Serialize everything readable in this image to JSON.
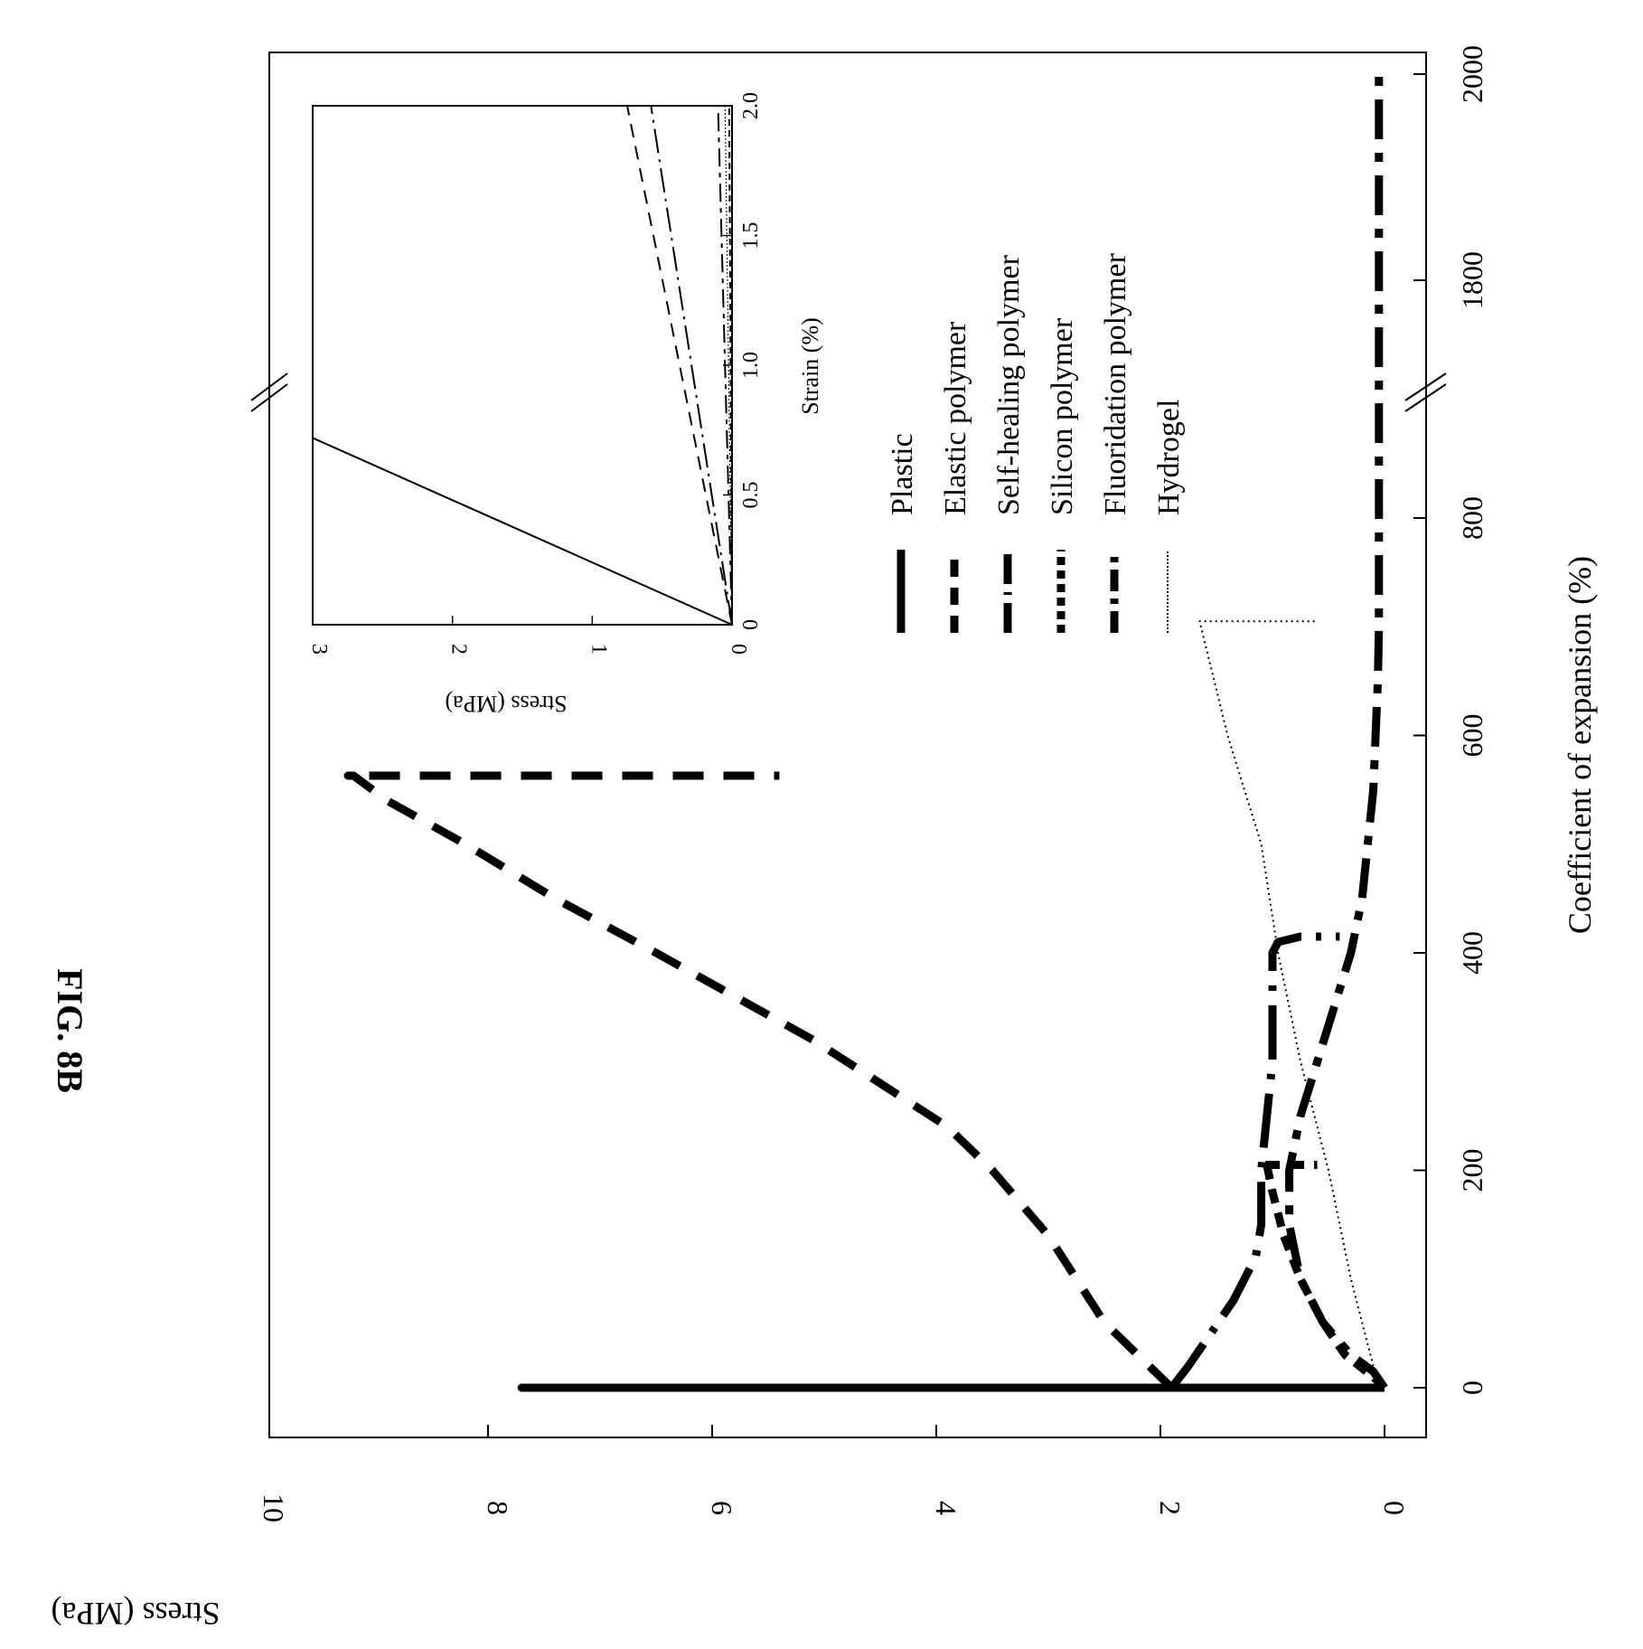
{
  "figure": {
    "label": "FIG. 8B"
  },
  "chart_data": [
    {
      "type": "line",
      "role": "main",
      "xlabel": "Coefficient of expansion (%)",
      "ylabel": "Stress (MPa)",
      "xlim": [
        -50,
        2050
      ],
      "ylim": [
        -0.3,
        10
      ],
      "axis_break": "between 850 and 1750",
      "xticks": [
        0,
        200,
        400,
        600,
        800,
        1800,
        2000
      ],
      "yticks": [
        0,
        2,
        4,
        6,
        8,
        10
      ],
      "grid": false,
      "series": [
        {
          "name": "Plastic",
          "x": [
            0,
            0,
            0
          ],
          "y": [
            0,
            7.7,
            0.9
          ]
        },
        {
          "name": "Elastic polymer",
          "x": [
            0,
            20,
            60,
            140,
            200,
            240,
            280,
            320,
            360,
            400,
            450,
            500,
            540,
            563,
            563,
            563
          ],
          "y": [
            1.9,
            2.1,
            2.5,
            3.0,
            3.5,
            3.9,
            4.5,
            5.1,
            5.8,
            6.5,
            7.4,
            8.2,
            8.9,
            9.2,
            9.25,
            5.4
          ]
        },
        {
          "name": "Self-healing polymer",
          "x": [
            0,
            20,
            50,
            80,
            120,
            150,
            200,
            250,
            300,
            350,
            400,
            410,
            415,
            415
          ],
          "y": [
            1.9,
            1.75,
            1.55,
            1.35,
            1.15,
            1.1,
            1.1,
            1.05,
            1.0,
            1.0,
            1.0,
            0.95,
            0.75,
            0.4
          ]
        },
        {
          "name": "Silicon polymer",
          "x": [
            0,
            10,
            30,
            60,
            100,
            140,
            180,
            205,
            205,
            205
          ],
          "y": [
            0,
            0.1,
            0.35,
            0.55,
            0.75,
            0.9,
            1.0,
            1.05,
            1.1,
            0.6
          ]
        },
        {
          "name": "Fluoridation polymer",
          "x": [
            0,
            15,
            30,
            60,
            100,
            150,
            200,
            250,
            300,
            350,
            400,
            450,
            500,
            550,
            600,
            650,
            700,
            800,
            1800,
            2000
          ],
          "y": [
            0,
            0.1,
            0.3,
            0.55,
            0.75,
            0.85,
            0.85,
            0.75,
            0.6,
            0.45,
            0.3,
            0.2,
            0.15,
            0.1,
            0.08,
            0.06,
            0.05,
            0.05,
            0.05,
            0.05
          ]
        },
        {
          "name": "Hydrogel",
          "x": [
            20,
            100,
            200,
            300,
            400,
            500,
            600,
            705,
            705
          ],
          "y": [
            0.1,
            0.3,
            0.5,
            0.75,
            0.95,
            1.1,
            1.4,
            1.65,
            0.6
          ]
        }
      ]
    },
    {
      "type": "line",
      "role": "inset",
      "xlabel": "Strain (%)",
      "ylabel": "Stress (MPa)",
      "xlim": [
        0,
        2.0
      ],
      "ylim": [
        0,
        3
      ],
      "xticks": [
        0,
        0.5,
        1.0,
        1.5,
        2.0
      ],
      "xtick_labels": [
        "0",
        "0.5",
        "1.0",
        "1.5",
        "2.0"
      ],
      "yticks": [
        0,
        1,
        2,
        3
      ],
      "series": [
        {
          "name": "Plastic",
          "x": [
            0,
            0.72
          ],
          "y": [
            0,
            3.0
          ]
        },
        {
          "name": "Elastic polymer",
          "x": [
            0,
            2.0
          ],
          "y": [
            0,
            0.75
          ]
        },
        {
          "name": "Self-healing polymer",
          "x": [
            0,
            2.0
          ],
          "y": [
            0,
            0.58
          ]
        },
        {
          "name": "Silicon polymer",
          "x": [
            0,
            2.0
          ],
          "y": [
            0,
            0.02
          ]
        },
        {
          "name": "Fluoridation polymer",
          "x": [
            0,
            2.0
          ],
          "y": [
            0,
            0.1
          ]
        },
        {
          "name": "Hydrogel",
          "x": [
            0,
            2.0
          ],
          "y": [
            0,
            0.05
          ]
        }
      ]
    }
  ],
  "styles": {
    "Plastic": {
      "dash": "",
      "width": 9,
      "inset_width": 2
    },
    "Elastic polymer": {
      "dash": "34,22",
      "width": 9,
      "inset_width": 2
    },
    "Self-healing polymer": {
      "dash": "60,16,6,16",
      "width": 9,
      "inset_width": 2
    },
    "Silicon polymer": {
      "dash": "16,11",
      "width": 9,
      "inset_width": 2
    },
    "Fluoridation polymer": {
      "dash": "44,15,10,15",
      "width": 9,
      "inset_width": 2
    },
    "Hydrogel": {
      "dash": "2,4",
      "width": 2,
      "inset_width": 1
    }
  },
  "legend": {
    "placement": "upper-right",
    "entries": [
      "Plastic",
      "Elastic polymer",
      "Self-healing polymer",
      "Silicon polymer",
      "Fluoridation polymer",
      "Hydrogel"
    ]
  }
}
